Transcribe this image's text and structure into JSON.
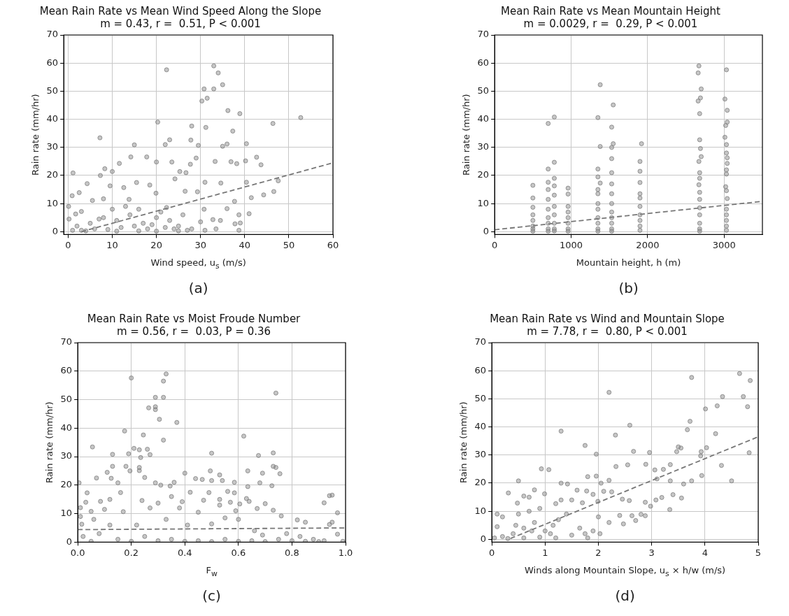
{
  "chart_data": [
    {
      "type": "scatter",
      "title": "Mean Rain Rate vs Mean Wind Speed Along the Slope",
      "subtitle": "m = 0.43, r =  0.51, P < 0.001",
      "xlabel": "Wind speed, u$_{s}$ (m/s)",
      "ylabel": "Rain rate (mm/hr)",
      "annotations": [
        "(a)"
      ],
      "xlim": [
        -1,
        60
      ],
      "xticks": [
        0,
        10,
        20,
        30,
        40,
        50,
        60
      ],
      "ylim": [
        -1,
        70
      ],
      "yticks": [
        0,
        10,
        20,
        30,
        40,
        50,
        60,
        70
      ],
      "grid": true,
      "legend": false,
      "marker": "circle",
      "series": [
        {
          "type": "scatter",
          "color": "#808080",
          "x": [
            22.3,
            33,
            34,
            31.5,
            30.3,
            30.8,
            33,
            35,
            36.2,
            38.9,
            20.3,
            28,
            31.2,
            37.3,
            46.4,
            52.7,
            7.2,
            15,
            22,
            23,
            27.8,
            29.5,
            35,
            36,
            40.4,
            14.2,
            17.8,
            29,
            42.7,
            43.7,
            1.1,
            7.3,
            8.3,
            10,
            20,
            23.5,
            25.3,
            26.7,
            27.7,
            33.3,
            36.9,
            38.2,
            40.2,
            11.6,
            4.3,
            9.5,
            15.5,
            18.5,
            24.2,
            31,
            34.6,
            40.4,
            47.6,
            0.9,
            2.5,
            5.5,
            12.6,
            19.9,
            26.5,
            29.3,
            37.7,
            41.5,
            44.3,
            46.6,
            0.1,
            1.7,
            3,
            8,
            13.8,
            22.3,
            30.8,
            36,
            41,
            38.7,
            38.7,
            39,
            37.8,
            34.5,
            32.8,
            30,
            33.5,
            28,
            25,
            22,
            18,
            15,
            12,
            9,
            6,
            3,
            1,
            5,
            8,
            11,
            14,
            17,
            20,
            23,
            26,
            10,
            13,
            7,
            16,
            19,
            21,
            24,
            27,
            2,
            4,
            11,
            16,
            20,
            25,
            31,
            0.2
          ],
          "values": [
            57.6,
            59,
            56.5,
            47.5,
            46.5,
            50.8,
            50.8,
            52.3,
            43.1,
            42,
            39,
            37.6,
            37.1,
            35.8,
            38.5,
            40.6,
            33.4,
            30.9,
            31,
            32.7,
            32.6,
            30.7,
            30.4,
            31.2,
            31.3,
            26.6,
            26.6,
            26.2,
            26.5,
            23.8,
            20.9,
            20,
            22.4,
            21.4,
            24.8,
            24.8,
            21.4,
            21,
            24,
            25,
            24.9,
            24.2,
            25.2,
            24.3,
            17.1,
            16.3,
            17.5,
            16.6,
            18.8,
            17.6,
            17.3,
            17.6,
            18.1,
            12.8,
            13.9,
            11.1,
            15.7,
            13.7,
            14.4,
            14.2,
            10.8,
            12.1,
            13.1,
            14.3,
            9,
            6.3,
            7.2,
            11.7,
            11.5,
            8.6,
            8,
            8.2,
            6.4,
            6,
            0.5,
            3.1,
            2.8,
            4,
            4.3,
            3.5,
            1,
            1,
            2,
            1.5,
            1,
            2,
            1.5,
            0.8,
            1,
            0.5,
            0.5,
            3,
            5,
            4,
            6,
            3,
            5,
            4,
            6,
            8,
            9,
            4.5,
            8,
            2.5,
            7,
            1,
            0.5,
            2,
            0.3,
            0.2,
            0.3,
            0.2,
            0.3,
            0.5,
            4.5
          ]
        },
        {
          "type": "line",
          "color": "#777777",
          "line_style": "dashed",
          "marker": "none",
          "x": [
            3,
            60
          ],
          "values": [
            0,
            24.5
          ]
        }
      ]
    },
    {
      "type": "scatter",
      "title": "Mean Rain Rate vs Mean Mountain Height",
      "subtitle": "m = 0.0029, r =  0.29, P < 0.001",
      "xlabel": "Mountain height, h (m)",
      "ylabel": "Rain rate (mm/hr)",
      "annotations": [
        "(b)"
      ],
      "xlim": [
        0,
        3500
      ],
      "xticks": [
        0,
        1000,
        2000,
        3000
      ],
      "ylim": [
        -1,
        70
      ],
      "yticks": [
        0,
        10,
        20,
        30,
        40,
        50,
        60,
        70
      ],
      "grid": true,
      "legend": false,
      "marker": "circle",
      "series": [
        {
          "type": "scatter",
          "color": "#808080",
          "x": [
            500,
            500,
            500,
            500,
            500,
            500,
            500,
            500,
            700,
            700,
            700,
            700,
            700,
            700,
            700,
            700,
            700,
            700,
            780,
            780,
            780,
            780,
            780,
            780,
            780,
            780,
            780,
            780,
            960,
            960,
            960,
            960,
            960,
            960,
            960,
            960,
            1350,
            1350,
            1350,
            1350,
            1350,
            1350,
            1350,
            1350,
            1350,
            1350,
            1350,
            1380,
            1380,
            1380,
            1530,
            1530,
            1530,
            1530,
            1530,
            1530,
            1530,
            1530,
            1530,
            1530,
            1530,
            1530,
            1550,
            1550,
            1900,
            1900,
            1900,
            1900,
            1900,
            1900,
            1900,
            1900,
            1900,
            1900,
            1920,
            2670,
            2660,
            2660,
            2690,
            2680,
            2700,
            2680,
            2690,
            2700,
            2670,
            2680,
            2680,
            2670,
            2680,
            2680,
            2680,
            2680,
            2680,
            2680,
            2680,
            3030,
            3010,
            3040,
            3040,
            3020,
            3010,
            3030,
            3030,
            3040,
            3040,
            3030,
            3030,
            3020,
            3030,
            3040,
            3030,
            3030,
            3030,
            3030,
            3030
          ],
          "values": [
            16.5,
            12,
            8.7,
            6,
            4,
            2,
            1,
            0.2,
            38.5,
            22.3,
            17.6,
            15,
            11.5,
            8,
            5,
            3,
            1,
            0.2,
            40.8,
            24.7,
            19,
            16.3,
            13,
            9,
            6,
            3,
            1,
            0.3,
            15.5,
            13.4,
            9,
            7,
            5,
            3,
            1,
            0.2,
            40.6,
            22.3,
            19.5,
            15,
            13.5,
            10,
            8,
            5,
            3,
            1,
            0.2,
            52.3,
            30.3,
            17.3,
            37.2,
            30,
            26,
            21,
            17,
            13.5,
            10,
            7,
            5,
            3,
            1,
            0.2,
            45.1,
            31.3,
            25,
            21.5,
            17.5,
            13.5,
            12,
            9,
            6,
            4,
            2,
            0.5,
            31.3,
            59,
            56.5,
            46.5,
            47.6,
            42,
            50.8,
            32.7,
            29.6,
            26.7,
            25,
            21,
            19,
            16.7,
            14,
            11.5,
            8.5,
            6,
            3,
            1,
            0.2,
            57.6,
            47.2,
            43.2,
            39,
            37.8,
            33.6,
            31,
            28,
            26.3,
            24.3,
            22,
            20.5,
            16,
            14.6,
            11.8,
            8,
            6,
            4,
            2,
            0.5
          ]
        },
        {
          "type": "line",
          "color": "#777777",
          "line_style": "dashed",
          "marker": "none",
          "x": [
            0,
            3500
          ],
          "values": [
            0.7,
            10.8
          ]
        }
      ]
    },
    {
      "type": "scatter",
      "title": "Mean Rain Rate vs Moist Froude Number",
      "subtitle": "m = 0.56, r =  0.03, P = 0.36",
      "xlabel": "F$_{w}$",
      "ylabel": "Rain rate (mm/hr)",
      "annotations": [
        "(c)"
      ],
      "xlim": [
        0,
        1
      ],
      "xticks": [
        {
          "value": 0,
          "label": "0.0"
        },
        0.2,
        0.4,
        0.6,
        0.8,
        {
          "value": 1,
          "label": "1.0"
        }
      ],
      "ylim": [
        0,
        70
      ],
      "yticks": [
        0,
        10,
        20,
        30,
        40,
        50,
        60,
        70
      ],
      "grid": true,
      "legend": false,
      "marker": "circle",
      "series": [
        {
          "type": "scatter",
          "color": "#808080",
          "x": [
            0.2,
            0.33,
            0.32,
            0.29,
            0.32,
            0.29,
            0.29,
            0.265,
            0.305,
            0.37,
            0.74,
            0.175,
            0.245,
            0.62,
            0.055,
            0.21,
            0.23,
            0.26,
            0.19,
            0.13,
            0.27,
            0.5,
            0.675,
            0.73,
            0.32,
            0.235,
            0.18,
            0.13,
            0.23,
            0.195,
            0.23,
            0.495,
            0.53,
            0.4,
            0.635,
            0.73,
            0.74,
            0.755,
            0.69,
            0.11,
            0.07,
            0.125,
            0.25,
            0.44,
            0.465,
            0.005,
            0.15,
            0.29,
            0.36,
            0.5,
            0.54,
            0.585,
            0.68,
            0.725,
            0.31,
            0.345,
            0.035,
            0.16,
            0.42,
            0.49,
            0.56,
            0.585,
            0.635,
            0.94,
            0.95,
            0.92,
            0.01,
            0.03,
            0.085,
            0.12,
            0.24,
            0.35,
            0.39,
            0.47,
            0.53,
            0.57,
            0.63,
            0.67,
            0.73,
            0.97,
            0.01,
            0.05,
            0.1,
            0.17,
            0.27,
            0.3,
            0.38,
            0.45,
            0.53,
            0.59,
            0.64,
            0.7,
            0.605,
            0.76,
            0.82,
            0.85,
            0.95,
            0.94,
            0.97,
            0.015,
            0.06,
            0.12,
            0.22,
            0.33,
            0.41,
            0.5,
            0.55,
            0.6,
            0.66,
            0.69,
            0.78,
            0.83,
            0.88,
            0.92,
            0.99,
            0.02,
            0.08,
            0.15,
            0.25,
            0.35,
            0.45,
            0.55,
            0.65,
            0.75,
            0.85,
            0.05,
            0.2,
            0.3,
            0.4,
            0.5,
            0.6,
            0.7,
            0.8,
            0.9
          ],
          "values": [
            57.6,
            59,
            56.5,
            50.8,
            50.8,
            47.5,
            46.5,
            47.1,
            43.1,
            42,
            52.3,
            39,
            37.6,
            37.2,
            33.4,
            32.9,
            32.4,
            32.6,
            31,
            30.8,
            30.7,
            31.2,
            30.4,
            31.3,
            35.8,
            29.7,
            26.6,
            26.6,
            26.2,
            25,
            25.1,
            25,
            23.6,
            24.2,
            25,
            26.6,
            26.2,
            24,
            24.2,
            24.5,
            22.5,
            22.4,
            22.7,
            22.3,
            22,
            20.8,
            20.8,
            20.8,
            21,
            21.6,
            21.6,
            21,
            20.8,
            19.8,
            20,
            19.7,
            17.3,
            17.4,
            17.5,
            17.4,
            17.8,
            17.3,
            19.5,
            16.3,
            16.5,
            13.8,
            12.1,
            14,
            14.3,
            15,
            14.6,
            16,
            14.2,
            14.7,
            15,
            14,
            15.3,
            11.8,
            11.2,
            10.3,
            9,
            10.8,
            11.5,
            10.7,
            12,
            13.7,
            12,
            10.5,
            13,
            11,
            14.3,
            13.5,
            13.4,
            9.2,
            7.8,
            7,
            7,
            6.2,
            2.8,
            6.3,
            8,
            6,
            6,
            8,
            6,
            6.4,
            8.5,
            8,
            4,
            2.5,
            3,
            2,
            1,
            0.5,
            0.3,
            2,
            3,
            1,
            2,
            1,
            0.5,
            1,
            0.5,
            1,
            0.3,
            0.3,
            0.3,
            0.5,
            0.3,
            0.2,
            0.3,
            0.2,
            0.5,
            0.2
          ]
        },
        {
          "type": "line",
          "color": "#777777",
          "line_style": "dashed",
          "marker": "none",
          "x": [
            0,
            1
          ],
          "values": [
            4.4,
            5
          ]
        }
      ]
    },
    {
      "type": "scatter",
      "title": "Mean Rain Rate vs Wind and Mountain Slope",
      "subtitle": "m = 7.78, r =  0.80, P < 0.001",
      "xlabel": "Winds along Mountain Slope, u$_{s}$ × h/w (m/s)",
      "ylabel": "Rain rate (mm/hr)",
      "annotations": [
        "(d)"
      ],
      "xlim": [
        0,
        5
      ],
      "xticks": [
        0,
        1,
        2,
        3,
        4,
        5
      ],
      "ylim": [
        -1,
        70
      ],
      "yticks": [
        0,
        10,
        20,
        30,
        40,
        50,
        60,
        70
      ],
      "grid": true,
      "legend": false,
      "marker": "circle",
      "series": [
        {
          "type": "scatter",
          "color": "#808080",
          "x": [
            4.65,
            3.75,
            4.85,
            4.72,
            4.33,
            4.8,
            4.23,
            4.01,
            2.2,
            3.72,
            3.67,
            2.59,
            1.3,
            2.32,
            4.2,
            3.5,
            3.55,
            3.47,
            4.03,
            3.93,
            4.83,
            2.66,
            2.96,
            1.75,
            1.96,
            3.92,
            4.31,
            2.33,
            2.55,
            2.89,
            3.35,
            3.06,
            3.22,
            3.1,
            3.35,
            3.75,
            4.5,
            3.94,
            3.6,
            3.56,
            3.4,
            3.34,
            3.19,
            3.08,
            2.98,
            2.88,
            2.88,
            2.7,
            2.8,
            2.63,
            2.58,
            2.45,
            2.47,
            2.4,
            2.2,
            2.25,
            2.2,
            2.05,
            2.1,
            1.96,
            1.8,
            1.78,
            1.9,
            1.99,
            2.0,
            2.03,
            1.9,
            1.3,
            1.42,
            0.93,
            1.07,
            0.99,
            0.8,
            0.5,
            0.31,
            0.6,
            0.7,
            0.48,
            0.2,
            0.1,
            0.1,
            0.5,
            0.7,
            0.9,
            1.2,
            1.3,
            1.5,
            1.6,
            1.7,
            1.4,
            1.25,
            1.15,
            1.0,
            0.8,
            0.6,
            0.4,
            0.2,
            0.05,
            0.3,
            0.6,
            0.9,
            1.2,
            1.5,
            1.75,
            1.8,
            1.65,
            1.1,
            0.75,
            0.45
          ],
          "values": [
            59,
            57.6,
            56.5,
            50.8,
            50.8,
            47.2,
            47.5,
            46.4,
            52.3,
            42,
            39,
            40.6,
            38.5,
            37.1,
            37.6,
            32.9,
            32.5,
            31.2,
            32.6,
            31.2,
            30.8,
            31.3,
            30.9,
            33.4,
            30.3,
            29.7,
            26.3,
            25.9,
            26.5,
            26.7,
            26.6,
            24.7,
            24.9,
            21.5,
            20.8,
            20.8,
            20.8,
            22.7,
            19.7,
            14.7,
            15.9,
            10.6,
            14.9,
            14,
            11.8,
            13.2,
            8.4,
            6.7,
            8.9,
            8.4,
            13.8,
            14.3,
            5.5,
            8.5,
            6,
            16.9,
            21,
            20,
            17.1,
            22.5,
            22.3,
            17.2,
            16,
            13.5,
            8,
            2,
            3,
            20,
            19.7,
            25.1,
            24.8,
            16.2,
            17.6,
            20.8,
            16.5,
            15.4,
            15,
            12.9,
            8,
            9,
            4.5,
            9,
            10,
            11,
            12.7,
            14,
            14,
            17.5,
            13,
            9,
            7,
            5,
            3,
            6,
            4,
            2,
            1,
            0.5,
            0.3,
            0.5,
            0.8,
            0.5,
            1.5,
            2,
            0.5,
            4,
            2,
            3,
            5
          ]
        },
        {
          "type": "line",
          "color": "#777777",
          "line_style": "dashed",
          "marker": "none",
          "x": [
            0.35,
            5
          ],
          "values": [
            0.3,
            36.5
          ]
        }
      ]
    }
  ]
}
